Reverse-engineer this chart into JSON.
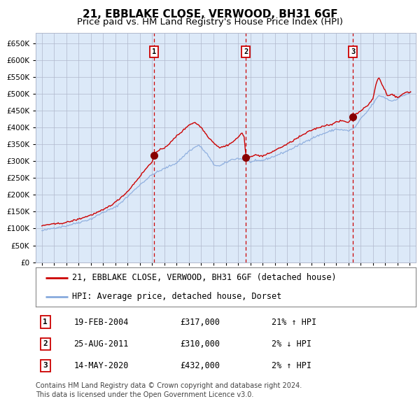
{
  "title": "21, EBBLAKE CLOSE, VERWOOD, BH31 6GF",
  "subtitle": "Price paid vs. HM Land Registry's House Price Index (HPI)",
  "footer": "Contains HM Land Registry data © Crown copyright and database right 2024.\nThis data is licensed under the Open Government Licence v3.0.",
  "legend_house": "21, EBBLAKE CLOSE, VERWOOD, BH31 6GF (detached house)",
  "legend_hpi": "HPI: Average price, detached house, Dorset",
  "transactions": [
    {
      "num": 1,
      "date": "19-FEB-2004",
      "price": 317000,
      "pct": "21%",
      "dir": "↑"
    },
    {
      "num": 2,
      "date": "25-AUG-2011",
      "price": 310000,
      "pct": "2%",
      "dir": "↓"
    },
    {
      "num": 3,
      "date": "14-MAY-2020",
      "price": 432000,
      "pct": "2%",
      "dir": "↑"
    }
  ],
  "transaction_dates_decimal": [
    2004.13,
    2011.64,
    2020.37
  ],
  "transaction_prices": [
    317000,
    310000,
    432000
  ],
  "ylim": [
    0,
    680000
  ],
  "yticks": [
    0,
    50000,
    100000,
    150000,
    200000,
    250000,
    300000,
    350000,
    400000,
    450000,
    500000,
    550000,
    600000,
    650000
  ],
  "xlim_start": 1994.5,
  "xlim_end": 2025.5,
  "background_color": "#dce9f8",
  "grid_color": "#b0b8cc",
  "line_color_house": "#cc0000",
  "line_color_hpi": "#88aadd",
  "dot_color": "#880000",
  "vline_color": "#cc0000",
  "box_color": "#cc0000",
  "title_fontsize": 11,
  "subtitle_fontsize": 9.5,
  "tick_fontsize": 7.5,
  "legend_fontsize": 8.5,
  "table_fontsize": 8.5,
  "footer_fontsize": 7
}
